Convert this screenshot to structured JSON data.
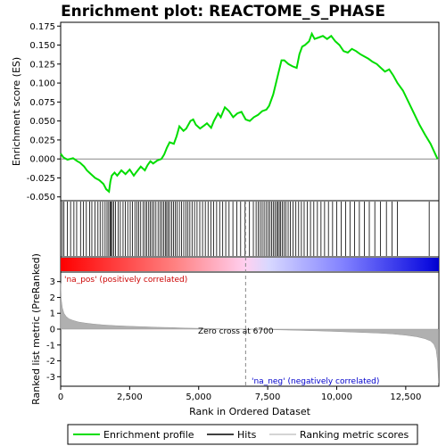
{
  "chart_data": {
    "type": "line",
    "title": "Enrichment plot: REACTOME_S_PHASE",
    "top_panel": {
      "ylabel": "Enrichment score (ES)",
      "ylim": [
        -0.055,
        0.18
      ],
      "y_ticks": [
        -0.05,
        -0.025,
        0.0,
        0.025,
        0.05,
        0.075,
        0.1,
        0.125,
        0.15,
        0.175
      ],
      "y_tick_labels": [
        "-0.050",
        "-0.025",
        "0.000",
        "0.025",
        "0.050",
        "0.075",
        "0.100",
        "0.125",
        "0.150",
        "0.175"
      ],
      "series": [
        {
          "name": "Enrichment profile",
          "color": "#00dd00",
          "x": [
            0,
            100,
            250,
            450,
            600,
            700,
            850,
            950,
            1100,
            1250,
            1400,
            1550,
            1650,
            1750,
            1800,
            1850,
            1950,
            2050,
            2200,
            2350,
            2500,
            2650,
            2750,
            2900,
            3050,
            3150,
            3250,
            3350,
            3500,
            3650,
            3750,
            3850,
            3950,
            4100,
            4200,
            4300,
            4450,
            4550,
            4700,
            4800,
            4900,
            5050,
            5200,
            5300,
            5450,
            5550,
            5700,
            5800,
            5950,
            6100,
            6250,
            6400,
            6550,
            6700,
            6850,
            7000,
            7150,
            7300,
            7450,
            7550,
            7700,
            7800,
            7900,
            8000,
            8100,
            8250,
            8400,
            8550,
            8650,
            8750,
            8850,
            9000,
            9100,
            9200,
            9350,
            9500,
            9650,
            9800,
            9950,
            10100,
            10250,
            10400,
            10550,
            10700,
            10850,
            11000,
            11150,
            11300,
            11450,
            11600,
            11750,
            11900,
            12050,
            12200,
            12400,
            12600,
            12800,
            13000,
            13200,
            13400,
            13550,
            13650
          ],
          "y": [
            0.007,
            0.002,
            -0.001,
            0.001,
            -0.003,
            -0.005,
            -0.01,
            -0.015,
            -0.02,
            -0.025,
            -0.028,
            -0.033,
            -0.04,
            -0.043,
            -0.03,
            -0.022,
            -0.018,
            -0.022,
            -0.015,
            -0.02,
            -0.014,
            -0.022,
            -0.017,
            -0.01,
            -0.015,
            -0.008,
            -0.003,
            -0.006,
            -0.002,
            0.0,
            0.006,
            0.015,
            0.022,
            0.02,
            0.03,
            0.043,
            0.037,
            0.04,
            0.05,
            0.052,
            0.045,
            0.04,
            0.044,
            0.047,
            0.041,
            0.05,
            0.06,
            0.055,
            0.068,
            0.063,
            0.055,
            0.06,
            0.062,
            0.052,
            0.05,
            0.055,
            0.058,
            0.063,
            0.065,
            0.07,
            0.085,
            0.1,
            0.115,
            0.13,
            0.13,
            0.125,
            0.122,
            0.12,
            0.138,
            0.148,
            0.15,
            0.155,
            0.165,
            0.158,
            0.16,
            0.162,
            0.158,
            0.162,
            0.155,
            0.15,
            0.142,
            0.14,
            0.145,
            0.142,
            0.138,
            0.135,
            0.132,
            0.128,
            0.125,
            0.12,
            0.115,
            0.118,
            0.11,
            0.1,
            0.09,
            0.075,
            0.06,
            0.045,
            0.032,
            0.02,
            0.008,
            0.0
          ]
        }
      ]
    },
    "hits": {
      "name": "Hits",
      "color": "#000000",
      "x": [
        60,
        120,
        240,
        360,
        480,
        580,
        720,
        820,
        930,
        1050,
        1130,
        1240,
        1350,
        1430,
        1520,
        1610,
        1680,
        1740,
        1790,
        1830,
        1870,
        1920,
        1990,
        2080,
        2160,
        2260,
        2340,
        2430,
        2520,
        2600,
        2690,
        2760,
        2830,
        2900,
        2990,
        3060,
        3120,
        3190,
        3250,
        3310,
        3380,
        3450,
        3530,
        3600,
        3670,
        3730,
        3790,
        3840,
        3890,
        3950,
        4020,
        4090,
        4150,
        4220,
        4300,
        4380,
        4460,
        4540,
        4610,
        4680,
        4760,
        4850,
        4940,
        5040,
        5140,
        5240,
        5340,
        5440,
        5540,
        5650,
        5760,
        5870,
        5980,
        6100,
        6240,
        6380,
        6520,
        6680,
        6840,
        6980,
        7080,
        7160,
        7230,
        7300,
        7370,
        7440,
        7510,
        7580,
        7640,
        7700,
        7760,
        7820,
        7870,
        7920,
        7970,
        8030,
        8090,
        8160,
        8240,
        8320,
        8420,
        8520,
        8620,
        8720,
        8820,
        8930,
        9050,
        9170,
        9300,
        9430,
        9560,
        9700,
        9850,
        10000,
        10160,
        10320,
        10480,
        10650,
        10820,
        11000,
        11180,
        11380,
        11580,
        11800,
        12000,
        12200,
        13350
      ]
    },
    "ranking_panel": {
      "ylabel": "Ranked list metric (PreRanked)",
      "xlabel": "Rank in Ordered Dataset",
      "xlim": [
        0,
        13700
      ],
      "ylim": [
        -3.6,
        3.6
      ],
      "x_ticks": [
        0,
        2500,
        5000,
        7500,
        10000,
        12500
      ],
      "x_tick_labels": [
        "0",
        "2,500",
        "5,000",
        "7,500",
        "10,000",
        "12,500"
      ],
      "y_ticks": [
        -3,
        -2,
        -1,
        0,
        1,
        2,
        3
      ],
      "y_tick_labels": [
        "-3",
        "-2",
        "-1",
        "0",
        "1",
        "2",
        "3"
      ],
      "metric_x": [
        0,
        20,
        60,
        120,
        200,
        300,
        450,
        650,
        900,
        1200,
        1600,
        2000,
        2500,
        3000,
        3500,
        4000,
        4500,
        5000,
        5500,
        6000,
        6700,
        7500,
        8500,
        9500,
        10500,
        11500,
        12000,
        12500,
        12900,
        13200,
        13400,
        13520,
        13600,
        13650,
        13690
      ],
      "metric_y": [
        2.9,
        1.9,
        1.35,
        1.0,
        0.8,
        0.65,
        0.55,
        0.45,
        0.38,
        0.32,
        0.26,
        0.22,
        0.18,
        0.15,
        0.12,
        0.1,
        0.07,
        0.05,
        0.03,
        0.01,
        0.0,
        -0.03,
        -0.07,
        -0.12,
        -0.18,
        -0.25,
        -0.3,
        -0.38,
        -0.48,
        -0.6,
        -0.75,
        -0.95,
        -1.3,
        -2.0,
        -3.4
      ],
      "zero_cross_rank": 6700,
      "zero_cross_label": "Zero cross at 6700",
      "pos_label": "'na_pos' (positively correlated)",
      "neg_label": "'na_neg' (negatively correlated)",
      "pos_color": "#cc0000",
      "neg_color": "#0000cc"
    },
    "legend": {
      "placement": "bottom",
      "entries": [
        {
          "label": "Enrichment profile",
          "color": "#00dd00"
        },
        {
          "label": "Hits",
          "color": "#000000"
        },
        {
          "label": "Ranking metric scores",
          "color": "#aaaaaa"
        }
      ]
    }
  }
}
